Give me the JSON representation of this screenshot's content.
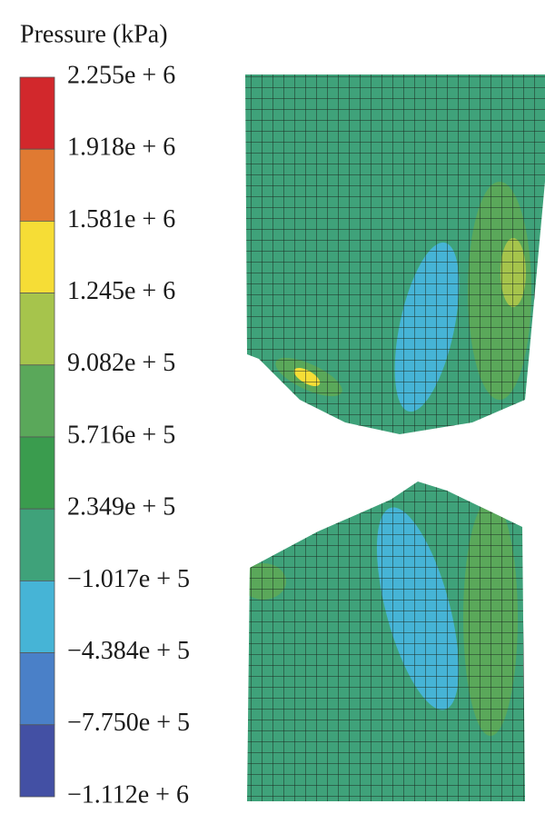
{
  "legend": {
    "title": "Pressure (kPa)",
    "labels": [
      "2.255e + 6",
      "1.918e + 6",
      "1.581e + 6",
      "1.245e + 6",
      "9.082e + 5",
      "5.716e + 5",
      "2.349e + 5",
      "−1.017e + 5",
      "−4.384e + 5",
      "−7.750e + 5",
      "−1.112e + 6"
    ],
    "colors": [
      "#d2282c",
      "#e07a32",
      "#f6dd36",
      "#a6c44c",
      "#5aa85a",
      "#3a9c4e",
      "#3fa27a",
      "#46b4d6",
      "#4a80c8",
      "#4350a4"
    ]
  }
}
